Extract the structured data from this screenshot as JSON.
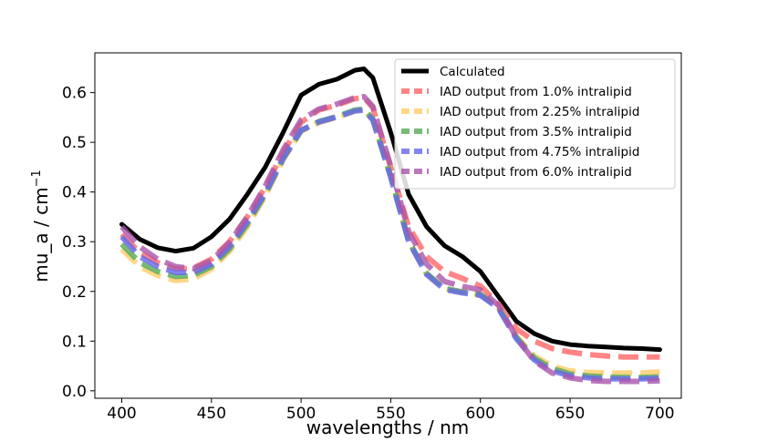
{
  "chart_data": {
    "type": "line",
    "title": "",
    "xlabel": "wavelengths / nm",
    "ylabel": "mu_a / cm",
    "ylabel_superscript": "−1",
    "xlim": [
      385,
      712
    ],
    "ylim": [
      -0.015,
      0.68
    ],
    "xticks": [
      400,
      450,
      500,
      550,
      600,
      650,
      700
    ],
    "yticks": [
      0.0,
      0.1,
      0.2,
      0.3,
      0.4,
      0.5,
      0.6
    ],
    "xtick_labels": [
      "400",
      "450",
      "500",
      "550",
      "600",
      "650",
      "700"
    ],
    "ytick_labels": [
      "0.0",
      "0.1",
      "0.2",
      "0.3",
      "0.4",
      "0.5",
      "0.6"
    ],
    "grid": false,
    "legend_position": "top-right",
    "x": [
      400,
      410,
      420,
      430,
      440,
      450,
      460,
      470,
      480,
      490,
      500,
      510,
      520,
      530,
      535,
      540,
      550,
      560,
      570,
      580,
      590,
      600,
      610,
      620,
      630,
      640,
      650,
      660,
      670,
      680,
      690,
      700
    ],
    "series": [
      {
        "name": "Calculated",
        "color": "#000000",
        "style": "solid",
        "values": [
          0.335,
          0.305,
          0.288,
          0.281,
          0.287,
          0.31,
          0.345,
          0.395,
          0.45,
          0.52,
          0.595,
          0.617,
          0.627,
          0.645,
          0.648,
          0.63,
          0.52,
          0.395,
          0.33,
          0.292,
          0.27,
          0.24,
          0.19,
          0.14,
          0.115,
          0.1,
          0.093,
          0.09,
          0.088,
          0.086,
          0.085,
          0.083
        ]
      },
      {
        "name": "IAD output from 1.0% intralipid",
        "color": "#ff6666",
        "style": "dashed",
        "values": [
          0.315,
          0.278,
          0.258,
          0.245,
          0.247,
          0.265,
          0.3,
          0.35,
          0.41,
          0.48,
          0.54,
          0.565,
          0.575,
          0.588,
          0.59,
          0.57,
          0.45,
          0.33,
          0.27,
          0.24,
          0.226,
          0.211,
          0.175,
          0.125,
          0.1,
          0.085,
          0.078,
          0.073,
          0.07,
          0.068,
          0.068,
          0.068
        ]
      },
      {
        "name": "IAD output from 2.25% intralipid",
        "color": "#ffcc66",
        "style": "dashed",
        "values": [
          0.285,
          0.25,
          0.232,
          0.222,
          0.225,
          0.245,
          0.28,
          0.33,
          0.392,
          0.465,
          0.522,
          0.54,
          0.55,
          0.563,
          0.565,
          0.545,
          0.43,
          0.3,
          0.235,
          0.205,
          0.198,
          0.193,
          0.168,
          0.11,
          0.07,
          0.05,
          0.04,
          0.037,
          0.036,
          0.036,
          0.036,
          0.038
        ]
      },
      {
        "name": "IAD output from 3.5% intralipid",
        "color": "#55aa55",
        "style": "dashed",
        "values": [
          0.295,
          0.258,
          0.24,
          0.23,
          0.232,
          0.25,
          0.285,
          0.335,
          0.395,
          0.467,
          0.524,
          0.542,
          0.552,
          0.565,
          0.567,
          0.547,
          0.432,
          0.302,
          0.236,
          0.206,
          0.199,
          0.194,
          0.168,
          0.108,
          0.066,
          0.045,
          0.034,
          0.03,
          0.028,
          0.027,
          0.027,
          0.028
        ]
      },
      {
        "name": "IAD output from 4.75% intralipid",
        "color": "#6666ee",
        "style": "dashed",
        "values": [
          0.31,
          0.27,
          0.25,
          0.238,
          0.238,
          0.255,
          0.29,
          0.34,
          0.398,
          0.468,
          0.524,
          0.541,
          0.551,
          0.563,
          0.565,
          0.545,
          0.43,
          0.3,
          0.234,
          0.204,
          0.197,
          0.192,
          0.166,
          0.105,
          0.062,
          0.04,
          0.03,
          0.026,
          0.024,
          0.024,
          0.024,
          0.025
        ]
      },
      {
        "name": "IAD output from 6.0% intralipid",
        "color": "#aa55aa",
        "style": "dashed",
        "values": [
          0.33,
          0.29,
          0.265,
          0.25,
          0.246,
          0.262,
          0.298,
          0.35,
          0.412,
          0.485,
          0.545,
          0.567,
          0.577,
          0.59,
          0.592,
          0.572,
          0.452,
          0.32,
          0.255,
          0.22,
          0.21,
          0.203,
          0.172,
          0.108,
          0.06,
          0.036,
          0.026,
          0.021,
          0.019,
          0.019,
          0.019,
          0.02
        ]
      }
    ]
  }
}
